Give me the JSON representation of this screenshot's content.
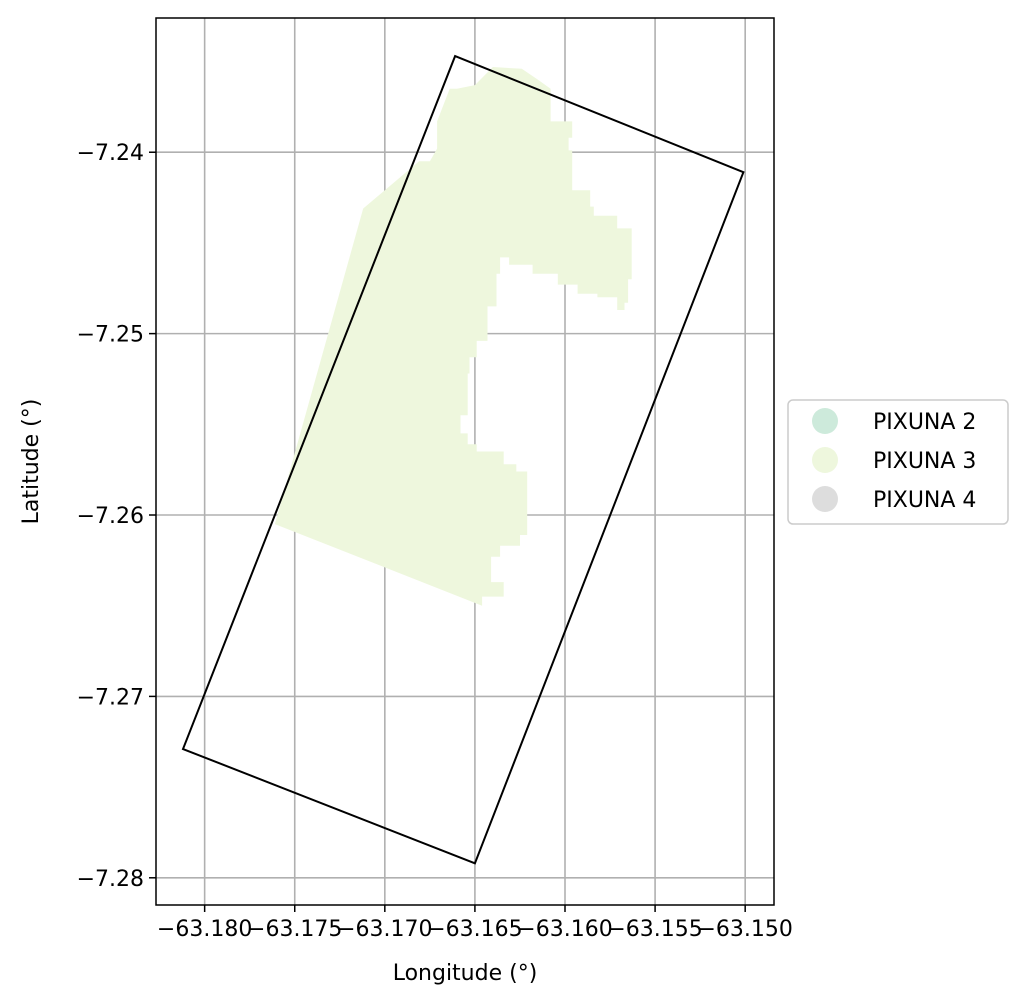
{
  "map": {
    "xlabel": "Longitude (°)",
    "ylabel": "Latitude (°)",
    "xlim": [
      -63.1827,
      -63.1484
    ],
    "ylim": [
      -7.2815,
      -7.2326
    ],
    "grid": true,
    "legend_position": "right, outside plot",
    "x_ticks": [
      {
        "value": -63.18,
        "label": "−63.180"
      },
      {
        "value": -63.175,
        "label": "−63.175"
      },
      {
        "value": -63.17,
        "label": "−63.170"
      },
      {
        "value": -63.165,
        "label": "−63.165"
      },
      {
        "value": -63.16,
        "label": "−63.160"
      },
      {
        "value": -63.155,
        "label": "−63.155"
      },
      {
        "value": -63.15,
        "label": "−63.150"
      }
    ],
    "y_ticks": [
      {
        "value": -7.24,
        "label": "−7.24"
      },
      {
        "value": -7.25,
        "label": "−7.25"
      },
      {
        "value": -7.26,
        "label": "−7.26"
      },
      {
        "value": -7.27,
        "label": "−7.27"
      },
      {
        "value": -7.28,
        "label": "−7.28"
      }
    ],
    "legend": [
      {
        "label": "PIXUNA 2",
        "color": "#cdeadb"
      },
      {
        "label": "PIXUNA 3",
        "color": "#eef7dd"
      },
      {
        "label": "PIXUNA 4",
        "color": "#dddddd"
      }
    ],
    "boundary_polygon": [
      [
        -63.1661,
        -7.2347
      ],
      [
        -63.1501,
        -7.2411
      ],
      [
        -63.165,
        -7.2792
      ],
      [
        -63.1812,
        -7.2729
      ]
    ],
    "pixuna3_area": [
      [
        -63.164,
        -7.2353
      ],
      [
        -63.1624,
        -7.2354
      ],
      [
        -63.1615,
        -7.236
      ],
      [
        -63.1608,
        -7.2365
      ],
      [
        -63.1608,
        -7.2383
      ],
      [
        -63.1596,
        -7.2383
      ],
      [
        -63.1596,
        -7.2392
      ],
      [
        -63.1598,
        -7.2392
      ],
      [
        -63.1598,
        -7.2399
      ],
      [
        -63.1596,
        -7.2399
      ],
      [
        -63.1596,
        -7.2421
      ],
      [
        -63.1586,
        -7.2421
      ],
      [
        -63.1586,
        -7.243
      ],
      [
        -63.1584,
        -7.243
      ],
      [
        -63.1584,
        -7.2435
      ],
      [
        -63.1571,
        -7.2435
      ],
      [
        -63.1571,
        -7.2442
      ],
      [
        -63.1563,
        -7.2442
      ],
      [
        -63.1563,
        -7.247
      ],
      [
        -63.1565,
        -7.247
      ],
      [
        -63.1565,
        -7.2483
      ],
      [
        -63.1567,
        -7.2483
      ],
      [
        -63.1567,
        -7.2487
      ],
      [
        -63.1571,
        -7.2487
      ],
      [
        -63.1571,
        -7.248
      ],
      [
        -63.1582,
        -7.248
      ],
      [
        -63.1582,
        -7.2478
      ],
      [
        -63.1593,
        -7.2478
      ],
      [
        -63.1593,
        -7.2473
      ],
      [
        -63.1604,
        -7.2473
      ],
      [
        -63.1604,
        -7.2467
      ],
      [
        -63.1618,
        -7.2467
      ],
      [
        -63.1618,
        -7.2462
      ],
      [
        -63.1631,
        -7.2462
      ],
      [
        -63.1631,
        -7.2458
      ],
      [
        -63.1636,
        -7.2458
      ],
      [
        -63.1636,
        -7.2467
      ],
      [
        -63.1638,
        -7.2467
      ],
      [
        -63.1638,
        -7.2485
      ],
      [
        -63.1643,
        -7.2485
      ],
      [
        -63.1643,
        -7.2504
      ],
      [
        -63.1649,
        -7.2504
      ],
      [
        -63.1649,
        -7.2513
      ],
      [
        -63.1653,
        -7.2513
      ],
      [
        -63.1653,
        -7.2522
      ],
      [
        -63.1654,
        -7.2522
      ],
      [
        -63.1654,
        -7.2545
      ],
      [
        -63.1658,
        -7.2545
      ],
      [
        -63.1658,
        -7.2555
      ],
      [
        -63.1654,
        -7.2555
      ],
      [
        -63.1654,
        -7.2561
      ],
      [
        -63.1649,
        -7.2561
      ],
      [
        -63.1649,
        -7.2565
      ],
      [
        -63.1634,
        -7.2565
      ],
      [
        -63.1634,
        -7.2572
      ],
      [
        -63.1627,
        -7.2572
      ],
      [
        -63.1627,
        -7.2576
      ],
      [
        -63.1621,
        -7.2576
      ],
      [
        -63.1621,
        -7.2611
      ],
      [
        -63.1625,
        -7.2611
      ],
      [
        -63.1625,
        -7.2617
      ],
      [
        -63.1636,
        -7.2617
      ],
      [
        -63.1636,
        -7.2623
      ],
      [
        -63.1641,
        -7.2623
      ],
      [
        -63.1641,
        -7.2637
      ],
      [
        -63.1634,
        -7.2637
      ],
      [
        -63.1634,
        -7.2645
      ],
      [
        -63.1646,
        -7.2645
      ],
      [
        -63.1646,
        -7.265
      ],
      [
        -63.1761,
        -7.2605
      ],
      [
        -63.1712,
        -7.2431
      ],
      [
        -63.1681,
        -7.2405
      ],
      [
        -63.1675,
        -7.2405
      ],
      [
        -63.1671,
        -7.2398
      ],
      [
        -63.1671,
        -7.2383
      ],
      [
        -63.1664,
        -7.2365
      ],
      [
        -63.166,
        -7.2365
      ],
      [
        -63.165,
        -7.2363
      ]
    ]
  }
}
